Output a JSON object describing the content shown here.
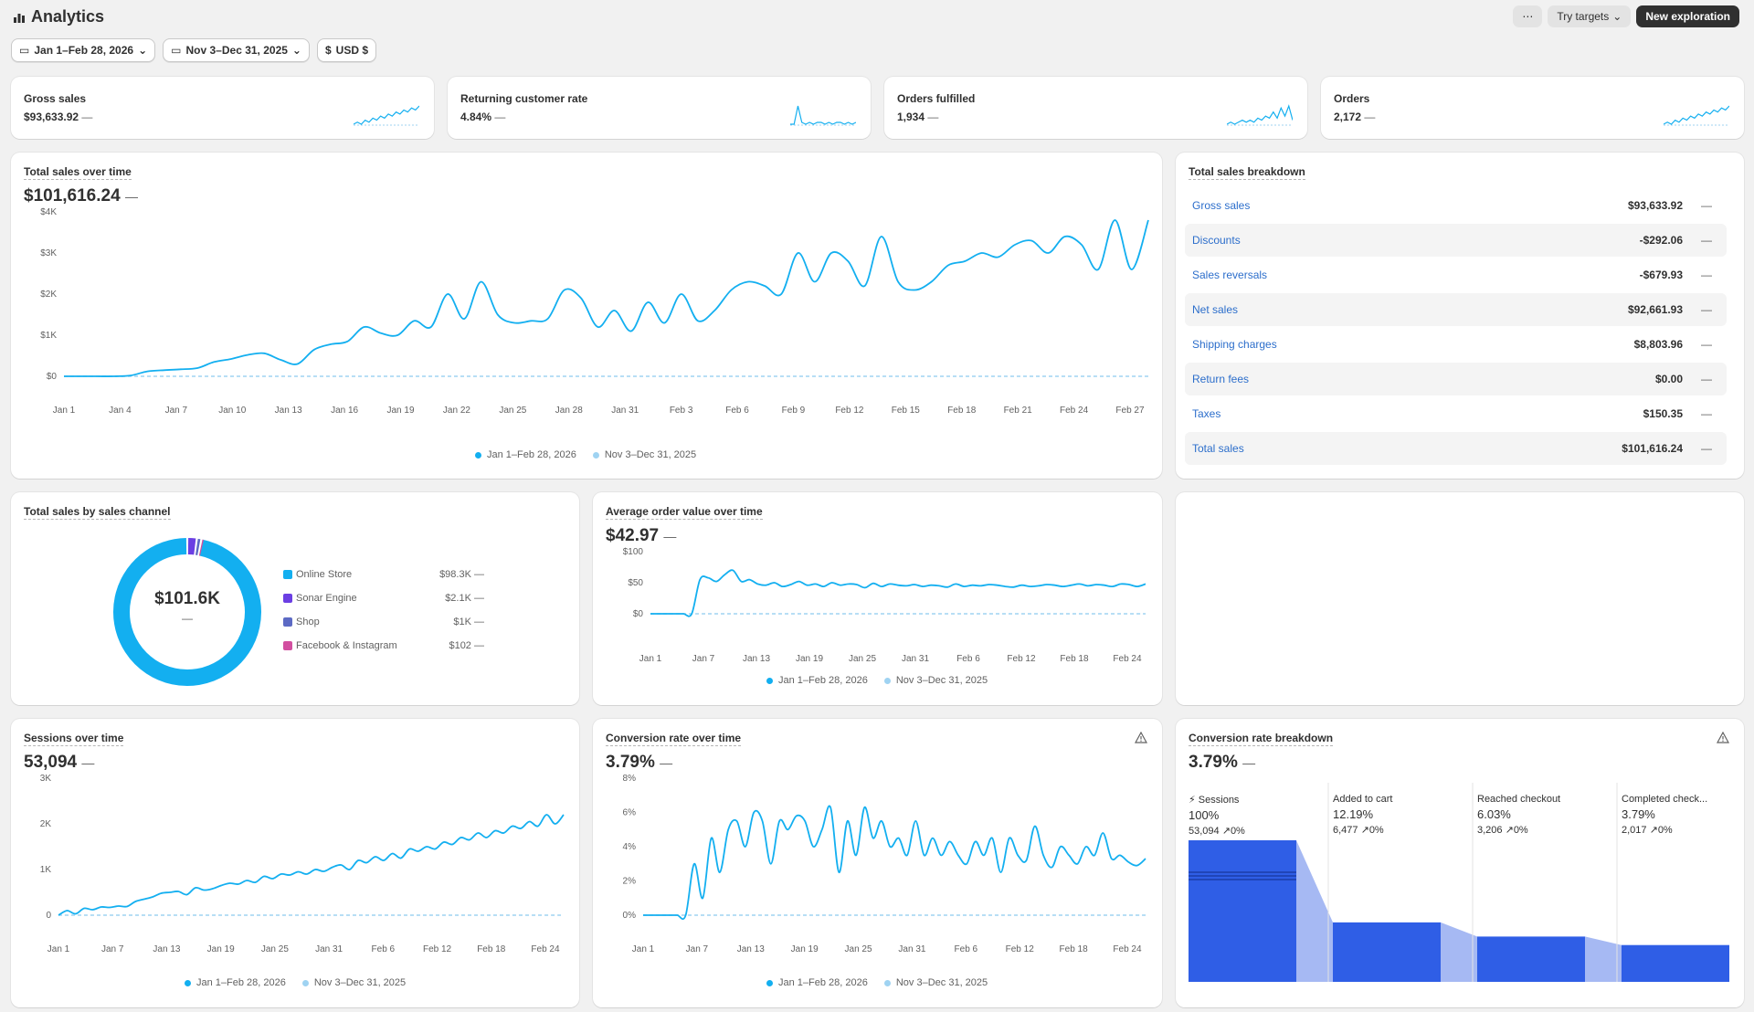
{
  "header": {
    "title": "Analytics",
    "more_label": "⋯",
    "try_targets_label": "Try targets",
    "new_exploration_label": "New exploration"
  },
  "filters": {
    "date_range": "Jan 1–Feb 28, 2026",
    "compare_range": "Nov 3–Dec 31, 2025",
    "currency": "USD $"
  },
  "kpis": [
    {
      "title": "Gross sales",
      "value": "$93,633.92",
      "change": "—"
    },
    {
      "title": "Returning customer rate",
      "value": "4.84%",
      "change": "—"
    },
    {
      "title": "Orders fulfilled",
      "value": "1,934",
      "change": "—"
    },
    {
      "title": "Orders",
      "value": "2,172",
      "change": "—"
    }
  ],
  "total_sales": {
    "title": "Total sales over time",
    "value": "$101,616.24",
    "change": "—",
    "legend": [
      "Jan 1–Feb 28, 2026",
      "Nov 3–Dec 31, 2025"
    ]
  },
  "breakdown": {
    "title": "Total sales breakdown",
    "rows": [
      {
        "label": "Gross sales",
        "value": "$93,633.92",
        "change": "—"
      },
      {
        "label": "Discounts",
        "value": "-$292.06",
        "change": "—"
      },
      {
        "label": "Sales reversals",
        "value": "-$679.93",
        "change": "—"
      },
      {
        "label": "Net sales",
        "value": "$92,661.93",
        "change": "—"
      },
      {
        "label": "Shipping charges",
        "value": "$8,803.96",
        "change": "—"
      },
      {
        "label": "Return fees",
        "value": "$0.00",
        "change": "—"
      },
      {
        "label": "Taxes",
        "value": "$150.35",
        "change": "—"
      },
      {
        "label": "Total sales",
        "value": "$101,616.24",
        "change": "—"
      }
    ]
  },
  "channels": {
    "title": "Total sales by sales channel",
    "center_value": "$101.6K",
    "center_change": "—",
    "items": [
      {
        "label": "Online Store",
        "value": "$98.3K",
        "change": "—",
        "color": "#13aff0"
      },
      {
        "label": "Sonar Engine",
        "value": "$2.1K",
        "change": "—",
        "color": "#6b3fe3"
      },
      {
        "label": "Shop",
        "value": "$1K",
        "change": "—",
        "color": "#5c6ac4"
      },
      {
        "label": "Facebook & Instagram",
        "value": "$102",
        "change": "—",
        "color": "#d24fa0"
      }
    ]
  },
  "aov": {
    "title": "Average order value over time",
    "value": "$42.97",
    "change": "—",
    "legend": [
      "Jan 1–Feb 28, 2026",
      "Nov 3–Dec 31, 2025"
    ]
  },
  "sessions": {
    "title": "Sessions over time",
    "value": "53,094",
    "change": "—",
    "legend": [
      "Jan 1–Feb 28, 2026",
      "Nov 3–Dec 31, 2025"
    ]
  },
  "conversion": {
    "title": "Conversion rate over time",
    "value": "3.79%",
    "change": "—",
    "legend": [
      "Jan 1–Feb 28, 2026",
      "Nov 3–Dec 31, 2025"
    ]
  },
  "funnel": {
    "title": "Conversion rate breakdown",
    "value": "3.79%",
    "change": "—",
    "steps": [
      {
        "name": "Sessions",
        "pct": "100%",
        "count": "53,094",
        "delta": "0%"
      },
      {
        "name": "Added to cart",
        "pct": "12.19%",
        "count": "6,477",
        "delta": "0%"
      },
      {
        "name": "Reached checkout",
        "pct": "6.03%",
        "count": "3,206",
        "delta": "0%"
      },
      {
        "name": "Completed check...",
        "pct": "3.79%",
        "count": "2,017",
        "delta": "0%"
      }
    ]
  },
  "colors": {
    "primary_series": "#13aff0",
    "compare_series": "#9fd3f2",
    "funnel": "#2f5ee6",
    "link": "#2c6ecb"
  },
  "chart_data": [
    {
      "type": "line",
      "name": "sales",
      "title": "Total sales over time",
      "x_ticks": [
        "Jan 1",
        "Jan 4",
        "Jan 7",
        "Jan 10",
        "Jan 13",
        "Jan 16",
        "Jan 19",
        "Jan 22",
        "Jan 25",
        "Jan 28",
        "Jan 31",
        "Feb 3",
        "Feb 6",
        "Feb 9",
        "Feb 12",
        "Feb 15",
        "Feb 18",
        "Feb 21",
        "Feb 24",
        "Feb 27"
      ],
      "y_ticks": [
        "$0",
        "$1K",
        "$2K",
        "$3K",
        "$4K"
      ],
      "ylim": [
        0,
        4000
      ],
      "series": [
        {
          "name": "Jan 1–Feb 28, 2026",
          "values": [
            0,
            0,
            0,
            0,
            20,
            120,
            150,
            170,
            200,
            350,
            420,
            520,
            560,
            400,
            300,
            650,
            780,
            850,
            1200,
            1050,
            1000,
            1350,
            1200,
            2000,
            1400,
            2300,
            1500,
            1300,
            1350,
            1400,
            2100,
            1900,
            1200,
            1600,
            1100,
            1800,
            1300,
            2000,
            1350,
            1600,
            2100,
            2300,
            2200,
            2000,
            3000,
            2300,
            3000,
            2800,
            2200,
            3400,
            2300,
            2100,
            2300,
            2700,
            2800,
            3000,
            2900,
            3200,
            3300,
            3000,
            3400,
            3200,
            2600,
            3800,
            2600,
            3800
          ]
        },
        {
          "name": "Nov 3–Dec 31, 2025",
          "values": [
            0,
            0,
            0,
            0,
            0,
            0,
            0,
            0,
            0,
            0,
            0,
            0,
            0,
            0,
            0,
            0,
            0,
            0,
            0,
            0
          ]
        }
      ]
    },
    {
      "type": "line",
      "name": "aov",
      "title": "Average order value over time",
      "x_ticks": [
        "Jan 1",
        "Jan 7",
        "Jan 13",
        "Jan 19",
        "Jan 25",
        "Jan 31",
        "Feb 6",
        "Feb 12",
        "Feb 18",
        "Feb 24"
      ],
      "y_ticks": [
        "$0",
        "$50",
        "$100"
      ],
      "ylim": [
        0,
        100
      ],
      "series": [
        {
          "name": "Jan 1–Feb 28, 2026",
          "values": [
            0,
            0,
            0,
            0,
            0,
            0,
            55,
            58,
            52,
            63,
            70,
            52,
            55,
            48,
            46,
            50,
            44,
            47,
            52,
            46,
            48,
            44,
            50,
            46,
            48,
            47,
            42,
            49,
            44,
            48,
            46,
            45,
            47,
            44,
            46,
            45,
            43,
            48,
            44,
            46,
            45,
            47,
            46,
            44,
            43,
            46,
            44,
            45,
            47,
            46,
            44,
            46,
            48,
            45,
            47,
            46,
            44,
            48,
            47,
            44,
            48
          ]
        },
        {
          "name": "Nov 3–Dec 31, 2025",
          "values": [
            0,
            0,
            0,
            0,
            0,
            0,
            0,
            0,
            0,
            0
          ]
        }
      ]
    },
    {
      "type": "line",
      "name": "sessions",
      "title": "Sessions over time",
      "x_ticks": [
        "Jan 1",
        "Jan 7",
        "Jan 13",
        "Jan 19",
        "Jan 25",
        "Jan 31",
        "Feb 6",
        "Feb 12",
        "Feb 18",
        "Feb 24"
      ],
      "y_ticks": [
        "0",
        "1K",
        "2K",
        "3K"
      ],
      "ylim": [
        0,
        3000
      ],
      "series": [
        {
          "name": "Jan 1–Feb 28, 2026",
          "values": [
            0,
            100,
            30,
            150,
            120,
            180,
            170,
            200,
            190,
            300,
            350,
            400,
            480,
            500,
            520,
            450,
            600,
            550,
            580,
            650,
            700,
            680,
            760,
            720,
            850,
            800,
            900,
            880,
            950,
            900,
            1000,
            960,
            1050,
            1100,
            1000,
            1200,
            1150,
            1280,
            1200,
            1350,
            1250,
            1450,
            1400,
            1500,
            1450,
            1600,
            1550,
            1700,
            1650,
            1800,
            1700,
            1850,
            1800,
            1950,
            1900,
            2050,
            1950,
            2200,
            2000,
            2200
          ]
        },
        {
          "name": "Nov 3–Dec 31, 2025",
          "values": [
            0,
            0,
            0,
            0,
            0,
            0,
            0,
            0,
            0,
            0
          ]
        }
      ]
    },
    {
      "type": "line",
      "name": "conversion",
      "title": "Conversion rate over time",
      "x_ticks": [
        "Jan 1",
        "Jan 7",
        "Jan 13",
        "Jan 19",
        "Jan 25",
        "Jan 31",
        "Feb 6",
        "Feb 12",
        "Feb 18",
        "Feb 24"
      ],
      "y_ticks": [
        "0%",
        "2%",
        "4%",
        "6%",
        "8%"
      ],
      "ylim": [
        0,
        8
      ],
      "series": [
        {
          "name": "Jan 1–Feb 28, 2026",
          "values": [
            0,
            0,
            0,
            0,
            0,
            0,
            3,
            1,
            4.5,
            2.5,
            5,
            5.5,
            4,
            6,
            5.5,
            3,
            5.5,
            5,
            5.8,
            5.5,
            4,
            5,
            6.3,
            2.5,
            5.5,
            3.5,
            6.3,
            4.5,
            5.5,
            4,
            4.5,
            3.5,
            5.5,
            3.5,
            4.5,
            3.5,
            4.3,
            3.5,
            3,
            4.3,
            3.5,
            4.5,
            2.5,
            4.5,
            3.5,
            3.2,
            5.2,
            3.5,
            2.8,
            4,
            3.5,
            3,
            4,
            3.5,
            4.8,
            3.3,
            3.5,
            3.1,
            2.9,
            3.3
          ]
        },
        {
          "name": "Nov 3–Dec 31, 2025",
          "values": [
            0,
            0,
            0,
            0,
            0,
            0,
            0,
            0,
            0,
            0
          ]
        }
      ]
    },
    {
      "type": "pie",
      "name": "channels",
      "title": "Total sales by sales channel",
      "categories": [
        "Online Store",
        "Sonar Engine",
        "Shop",
        "Facebook & Instagram"
      ],
      "values": [
        98300,
        2100,
        1000,
        102
      ]
    },
    {
      "type": "bar",
      "name": "funnel",
      "title": "Conversion rate breakdown",
      "categories": [
        "Sessions",
        "Added to cart",
        "Reached checkout",
        "Completed check..."
      ],
      "values": [
        100,
        12.19,
        6.03,
        3.79
      ]
    },
    {
      "type": "line",
      "name": "kpi-sparklines",
      "series": [
        {
          "name": "Gross sales",
          "values": [
            1,
            2,
            1,
            3,
            2,
            4,
            3,
            5,
            4,
            6,
            5,
            7,
            6,
            8,
            7,
            9,
            8,
            10
          ]
        },
        {
          "name": "Returning customer rate",
          "values": [
            0,
            0,
            10,
            1,
            0,
            1,
            0,
            1,
            1,
            0,
            1,
            0,
            1,
            1,
            0,
            1,
            0,
            1
          ]
        },
        {
          "name": "Orders fulfilled",
          "values": [
            0,
            1,
            0,
            1,
            2,
            1,
            2,
            1,
            3,
            2,
            4,
            3,
            6,
            3,
            8,
            4,
            9,
            2
          ]
        },
        {
          "name": "Orders",
          "values": [
            1,
            2,
            1,
            3,
            2,
            4,
            3,
            5,
            4,
            6,
            5,
            7,
            6,
            8,
            7,
            9,
            8,
            10
          ]
        }
      ]
    }
  ]
}
